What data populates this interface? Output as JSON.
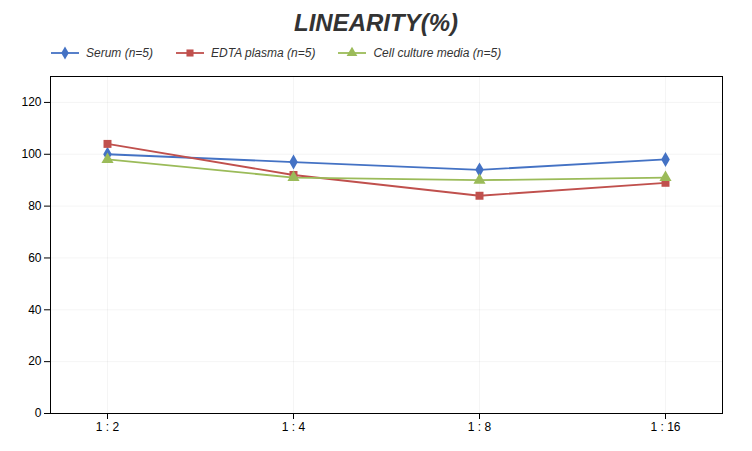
{
  "chart_data": {
    "type": "line",
    "title": "LINEARITY(%)",
    "categories": [
      "1 : 2",
      "1 : 4",
      "1 : 8",
      "1 : 16"
    ],
    "series": [
      {
        "name": "Serum (n=5)",
        "color": "#4472C4",
        "marker": "diamond",
        "values": [
          100,
          97,
          94,
          98
        ]
      },
      {
        "name": "EDTA plasma (n=5)",
        "color": "#C0504D",
        "marker": "square",
        "values": [
          104,
          92,
          84,
          89
        ]
      },
      {
        "name": "Cell culture media (n=5)",
        "color": "#9BBB59",
        "marker": "triangle",
        "values": [
          98,
          91,
          90,
          91
        ]
      }
    ],
    "ylim": [
      0,
      130
    ],
    "yticks": [
      0,
      20,
      40,
      60,
      80,
      100,
      120
    ],
    "grid": true,
    "legend": "upper left"
  }
}
